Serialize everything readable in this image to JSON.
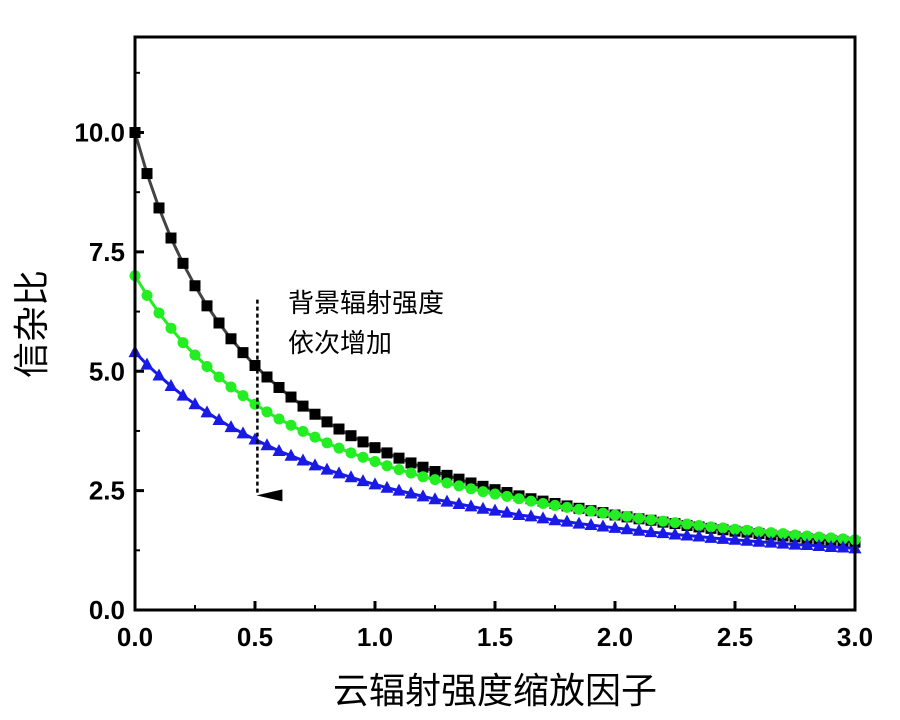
{
  "chart_data": {
    "type": "line",
    "xlabel": "云辐射强度缩放因子",
    "ylabel": "信杂比",
    "xlim": [
      0,
      3.0
    ],
    "ylim": [
      0,
      12.0
    ],
    "x_ticks": [
      "0.0",
      "0.5",
      "1.0",
      "1.5",
      "2.0",
      "2.5",
      "3.0"
    ],
    "y_ticks": [
      "0.0",
      "2.5",
      "5.0",
      "7.5",
      "10.0"
    ],
    "grid": false,
    "annotation": {
      "lines": [
        "背景辐射强度",
        "依次增加"
      ],
      "arrow": {
        "x": 0.51,
        "y_from": 6.5,
        "y_to": 2.4
      }
    },
    "x": [
      0.0,
      0.05,
      0.1,
      0.15,
      0.2,
      0.25,
      0.3,
      0.35,
      0.4,
      0.45,
      0.5,
      0.55,
      0.6,
      0.65,
      0.7,
      0.75,
      0.8,
      0.85,
      0.9,
      0.95,
      1.0,
      1.05,
      1.1,
      1.15,
      1.2,
      1.25,
      1.3,
      1.35,
      1.4,
      1.45,
      1.5,
      1.55,
      1.6,
      1.65,
      1.7,
      1.75,
      1.8,
      1.85,
      1.9,
      1.95,
      2.0,
      2.05,
      2.1,
      2.15,
      2.2,
      2.25,
      2.3,
      2.35,
      2.4,
      2.45,
      2.5,
      2.55,
      2.6,
      2.65,
      2.7,
      2.75,
      2.8,
      2.85,
      2.9,
      2.95,
      3.0
    ],
    "series": [
      {
        "marker": "square",
        "color": "#000000",
        "line_color": "#444444",
        "values": [
          10.0,
          9.14,
          8.42,
          7.79,
          7.26,
          6.79,
          6.37,
          6.01,
          5.68,
          5.39,
          5.12,
          4.88,
          4.66,
          4.46,
          4.27,
          4.1,
          3.94,
          3.79,
          3.65,
          3.52,
          3.4,
          3.29,
          3.18,
          3.08,
          2.99,
          2.9,
          2.82,
          2.74,
          2.66,
          2.59,
          2.52,
          2.46,
          2.39,
          2.33,
          2.28,
          2.23,
          2.18,
          2.13,
          2.08,
          2.04,
          1.99,
          1.95,
          1.91,
          1.88,
          1.84,
          1.81,
          1.77,
          1.74,
          1.71,
          1.68,
          1.65,
          1.63,
          1.6,
          1.57,
          1.55,
          1.53,
          1.5,
          1.48,
          1.46,
          1.44,
          1.42
        ]
      },
      {
        "marker": "circle",
        "color": "#22ee22",
        "line_color": "#22ee22",
        "values": [
          7.0,
          6.59,
          6.22,
          5.9,
          5.6,
          5.34,
          5.1,
          4.88,
          4.67,
          4.49,
          4.31,
          4.15,
          4.0,
          3.87,
          3.74,
          3.62,
          3.5,
          3.39,
          3.29,
          3.2,
          3.11,
          3.02,
          2.94,
          2.87,
          2.79,
          2.73,
          2.66,
          2.6,
          2.54,
          2.48,
          2.43,
          2.38,
          2.33,
          2.28,
          2.23,
          2.19,
          2.15,
          2.11,
          2.07,
          2.03,
          1.99,
          1.96,
          1.92,
          1.89,
          1.86,
          1.83,
          1.8,
          1.77,
          1.74,
          1.72,
          1.69,
          1.67,
          1.64,
          1.62,
          1.6,
          1.57,
          1.55,
          1.53,
          1.51,
          1.49,
          1.47
        ]
      },
      {
        "marker": "triangle",
        "color": "#1a1ae6",
        "line_color": "#1a1ae6",
        "values": [
          5.4,
          5.14,
          4.91,
          4.69,
          4.49,
          4.31,
          4.14,
          3.98,
          3.83,
          3.7,
          3.57,
          3.45,
          3.33,
          3.23,
          3.13,
          3.03,
          2.94,
          2.86,
          2.78,
          2.7,
          2.63,
          2.56,
          2.5,
          2.44,
          2.38,
          2.32,
          2.27,
          2.22,
          2.17,
          2.12,
          2.08,
          2.04,
          1.99,
          1.96,
          1.92,
          1.88,
          1.85,
          1.81,
          1.78,
          1.75,
          1.72,
          1.69,
          1.66,
          1.63,
          1.61,
          1.58,
          1.56,
          1.54,
          1.51,
          1.49,
          1.47,
          1.45,
          1.43,
          1.41,
          1.39,
          1.37,
          1.36,
          1.34,
          1.32,
          1.31,
          1.29
        ]
      }
    ]
  }
}
